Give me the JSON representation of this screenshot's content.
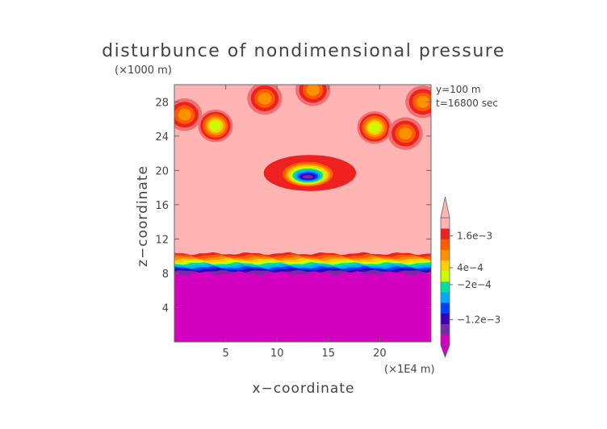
{
  "chart_data": {
    "type": "heatmap",
    "title": "disturbunce of nondimensional pressure",
    "y_unit": "(×1000 m)",
    "x_unit": "(×1E4 m)",
    "xlabel": "x−coordinate",
    "ylabel": "z−coordinate",
    "annotations": [
      "y=100 m",
      "t=16800 sec"
    ],
    "xlim": [
      0,
      25
    ],
    "ylim": [
      0,
      30
    ],
    "x_ticks": [
      5,
      10,
      15,
      20
    ],
    "x_tick_labels": [
      "5",
      "10",
      "15",
      "20"
    ],
    "y_ticks": [
      4,
      8,
      12,
      16,
      20,
      24,
      28
    ],
    "y_tick_labels": [
      "4",
      "8",
      "12",
      "16",
      "20",
      "24",
      "28"
    ],
    "grid": false,
    "legend": "right colorbar",
    "colorbar": {
      "colors": [
        "#d400c0",
        "#7a2aa8",
        "#3a00b4",
        "#0040ff",
        "#00aaff",
        "#00e0a0",
        "#c8ff00",
        "#ffd000",
        "#ff9000",
        "#ff5a00",
        "#ee2020",
        "#ffb4b4"
      ],
      "tick_labels": [
        "1.6e−3",
        "4e−4",
        "−2e−4",
        "−1.2e−3"
      ],
      "tick_level_index": [
        10.3,
        7.3,
        5.7,
        2.4
      ]
    },
    "field_regions": {
      "background": "#ffb4b4",
      "lower_layer": {
        "z_top": 8.0,
        "color": "#d400c0",
        "note": "strong negative disturbance below ~8 km"
      },
      "transition_band": {
        "z_range": [
          8.0,
          10.3
        ],
        "colors_bottom_to_top": [
          "#7a2aa8",
          "#3a00b4",
          "#0040ff",
          "#00aaff",
          "#00e0a0",
          "#c8ff00",
          "#ffd000",
          "#ff9000",
          "#ff5a00",
          "#ee2020"
        ]
      },
      "negative_pocket": {
        "x_center": 13,
        "z_center": 19.6,
        "x_halfwidth": 2.5,
        "z_halfwidth": 1.6
      },
      "upper_positive_patches": [
        {
          "x": 1.0,
          "z": 26.5
        },
        {
          "x": 4.0,
          "z": 25.2
        },
        {
          "x": 8.8,
          "z": 28.4
        },
        {
          "x": 13.5,
          "z": 29.4
        },
        {
          "x": 19.5,
          "z": 25.0
        },
        {
          "x": 22.5,
          "z": 24.3
        },
        {
          "x": 24.2,
          "z": 28.0
        }
      ]
    }
  }
}
